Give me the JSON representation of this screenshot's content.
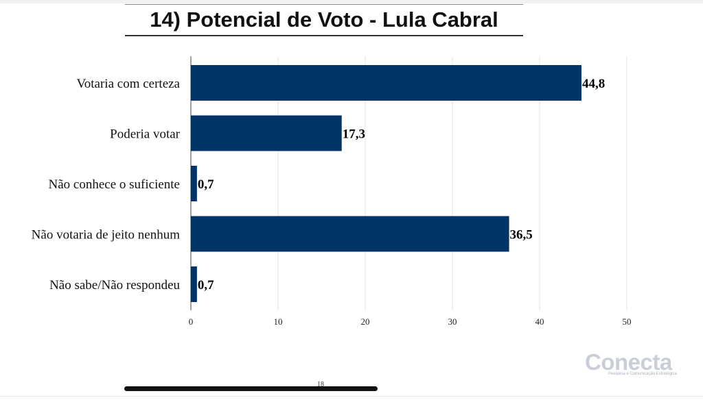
{
  "title": "14) Potencial de Voto - Lula Cabral",
  "page_number": "18",
  "logo": {
    "brand": "Conecta",
    "tagline": "Pesquisa e Comunicação Estratégica"
  },
  "colors": {
    "bar": "#003366"
  },
  "chart_data": {
    "type": "bar",
    "orientation": "horizontal",
    "title": "14) Potencial de Voto - Lula Cabral",
    "categories": [
      "Votaria com certeza",
      "Poderia votar",
      "Não conhece o suficiente",
      "Não votaria de jeito nenhum",
      "Não sabe/Não respondeu"
    ],
    "values": [
      44.8,
      17.3,
      0.7,
      36.5,
      0.7
    ],
    "value_labels": [
      "44,8",
      "17,3",
      "0,7",
      "36,5",
      "0,7"
    ],
    "xlim": [
      0,
      50
    ],
    "xticks": [
      0,
      10,
      20,
      30,
      40,
      50
    ],
    "grid": true,
    "legend": "none"
  }
}
